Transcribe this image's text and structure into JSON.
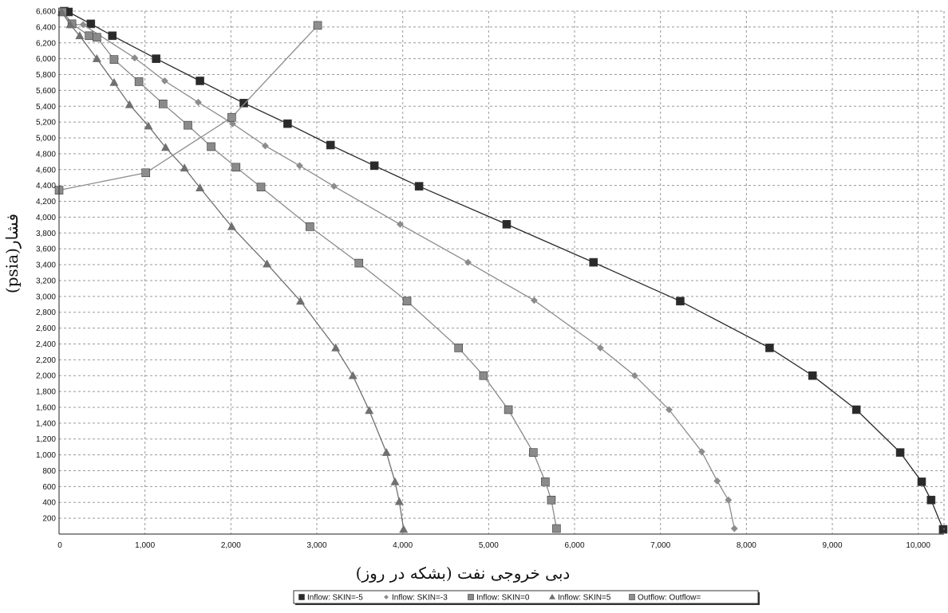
{
  "chart_data": {
    "type": "line",
    "title": "",
    "xlabel": "دبی خروجی نفت (بشکه در روز)",
    "ylabel": "فشار(psia)",
    "xlim": [
      0,
      10300
    ],
    "ylim": [
      0,
      6600
    ],
    "x_ticks": [
      "0",
      "1,000",
      "2,000",
      "3,000",
      "4,000",
      "5,000",
      "6,000",
      "7,000",
      "8,000",
      "9,000",
      "10,000"
    ],
    "y_ticks": [
      "200",
      "400",
      "600",
      "800",
      "1,000",
      "1,200",
      "1,400",
      "1,600",
      "1,800",
      "2,000",
      "2,200",
      "2,400",
      "2,600",
      "2,800",
      "3,000",
      "3,200",
      "3,400",
      "3,600",
      "3,800",
      "4,000",
      "4,200",
      "4,400",
      "4,600",
      "4,800",
      "5,000",
      "5,200",
      "5,400",
      "5,600",
      "5,800",
      "6,000",
      "6,200",
      "6,400",
      "6,600"
    ],
    "grid": true,
    "legend_position": "bottom",
    "series": [
      {
        "name": "Inflow: SKIN=-5",
        "marker": "square",
        "color": "#2a2a2a",
        "points": [
          [
            60,
            6600
          ],
          [
            110,
            6590
          ],
          [
            370,
            6440
          ],
          [
            620,
            6290
          ],
          [
            1130,
            6000
          ],
          [
            1640,
            5720
          ],
          [
            2150,
            5440
          ],
          [
            2660,
            5180
          ],
          [
            3160,
            4910
          ],
          [
            3670,
            4650
          ],
          [
            4190,
            4390
          ],
          [
            5210,
            3910
          ],
          [
            6220,
            3430
          ],
          [
            7230,
            2940
          ],
          [
            8270,
            2350
          ],
          [
            8770,
            2000
          ],
          [
            9280,
            1570
          ],
          [
            9790,
            1030
          ],
          [
            10040,
            660
          ],
          [
            10150,
            430
          ],
          [
            10290,
            60
          ]
        ]
      },
      {
        "name": "Inflow: SKIN=-3",
        "marker": "diamond",
        "color": "#8c8c8c",
        "points": [
          [
            40,
            6590
          ],
          [
            170,
            6430
          ],
          [
            280,
            6430
          ],
          [
            880,
            6010
          ],
          [
            1230,
            5720
          ],
          [
            1620,
            5450
          ],
          [
            2020,
            5180
          ],
          [
            2400,
            4900
          ],
          [
            2800,
            4650
          ],
          [
            3200,
            4390
          ],
          [
            3970,
            3910
          ],
          [
            4760,
            3430
          ],
          [
            5530,
            2950
          ],
          [
            6300,
            2350
          ],
          [
            6700,
            2000
          ],
          [
            7100,
            1570
          ],
          [
            7480,
            1040
          ],
          [
            7660,
            670
          ],
          [
            7790,
            430
          ],
          [
            7860,
            70
          ]
        ]
      },
      {
        "name": "Inflow: SKIN=0",
        "marker": "square",
        "color": "#8a8a8a",
        "points": [
          [
            40,
            6590
          ],
          [
            150,
            6440
          ],
          [
            350,
            6290
          ],
          [
            440,
            6270
          ],
          [
            640,
            5990
          ],
          [
            930,
            5710
          ],
          [
            1210,
            5430
          ],
          [
            1500,
            5160
          ],
          [
            1770,
            4890
          ],
          [
            2060,
            4630
          ],
          [
            2350,
            4380
          ],
          [
            2920,
            3880
          ],
          [
            3490,
            3420
          ],
          [
            4050,
            2940
          ],
          [
            4650,
            2350
          ],
          [
            4940,
            2000
          ],
          [
            5230,
            1570
          ],
          [
            5520,
            1030
          ],
          [
            5660,
            660
          ],
          [
            5730,
            430
          ],
          [
            5790,
            70
          ]
        ]
      },
      {
        "name": "Inflow: SKIN=5",
        "marker": "triangle",
        "color": "#707070",
        "points": [
          [
            30,
            6590
          ],
          [
            130,
            6430
          ],
          [
            240,
            6290
          ],
          [
            440,
            6000
          ],
          [
            640,
            5700
          ],
          [
            820,
            5420
          ],
          [
            1040,
            5150
          ],
          [
            1240,
            4880
          ],
          [
            1460,
            4620
          ],
          [
            1640,
            4370
          ],
          [
            2010,
            3880
          ],
          [
            2420,
            3410
          ],
          [
            2810,
            2940
          ],
          [
            3220,
            2350
          ],
          [
            3420,
            2000
          ],
          [
            3610,
            1560
          ],
          [
            3810,
            1030
          ],
          [
            3910,
            660
          ],
          [
            3960,
            410
          ],
          [
            4010,
            60
          ]
        ]
      },
      {
        "name": "Outflow: Outflow=",
        "marker": "square",
        "color": "#8e8e8e",
        "points": [
          [
            0,
            4340
          ],
          [
            1010,
            4560
          ],
          [
            2010,
            5260
          ],
          [
            3010,
            6420
          ]
        ]
      }
    ]
  }
}
